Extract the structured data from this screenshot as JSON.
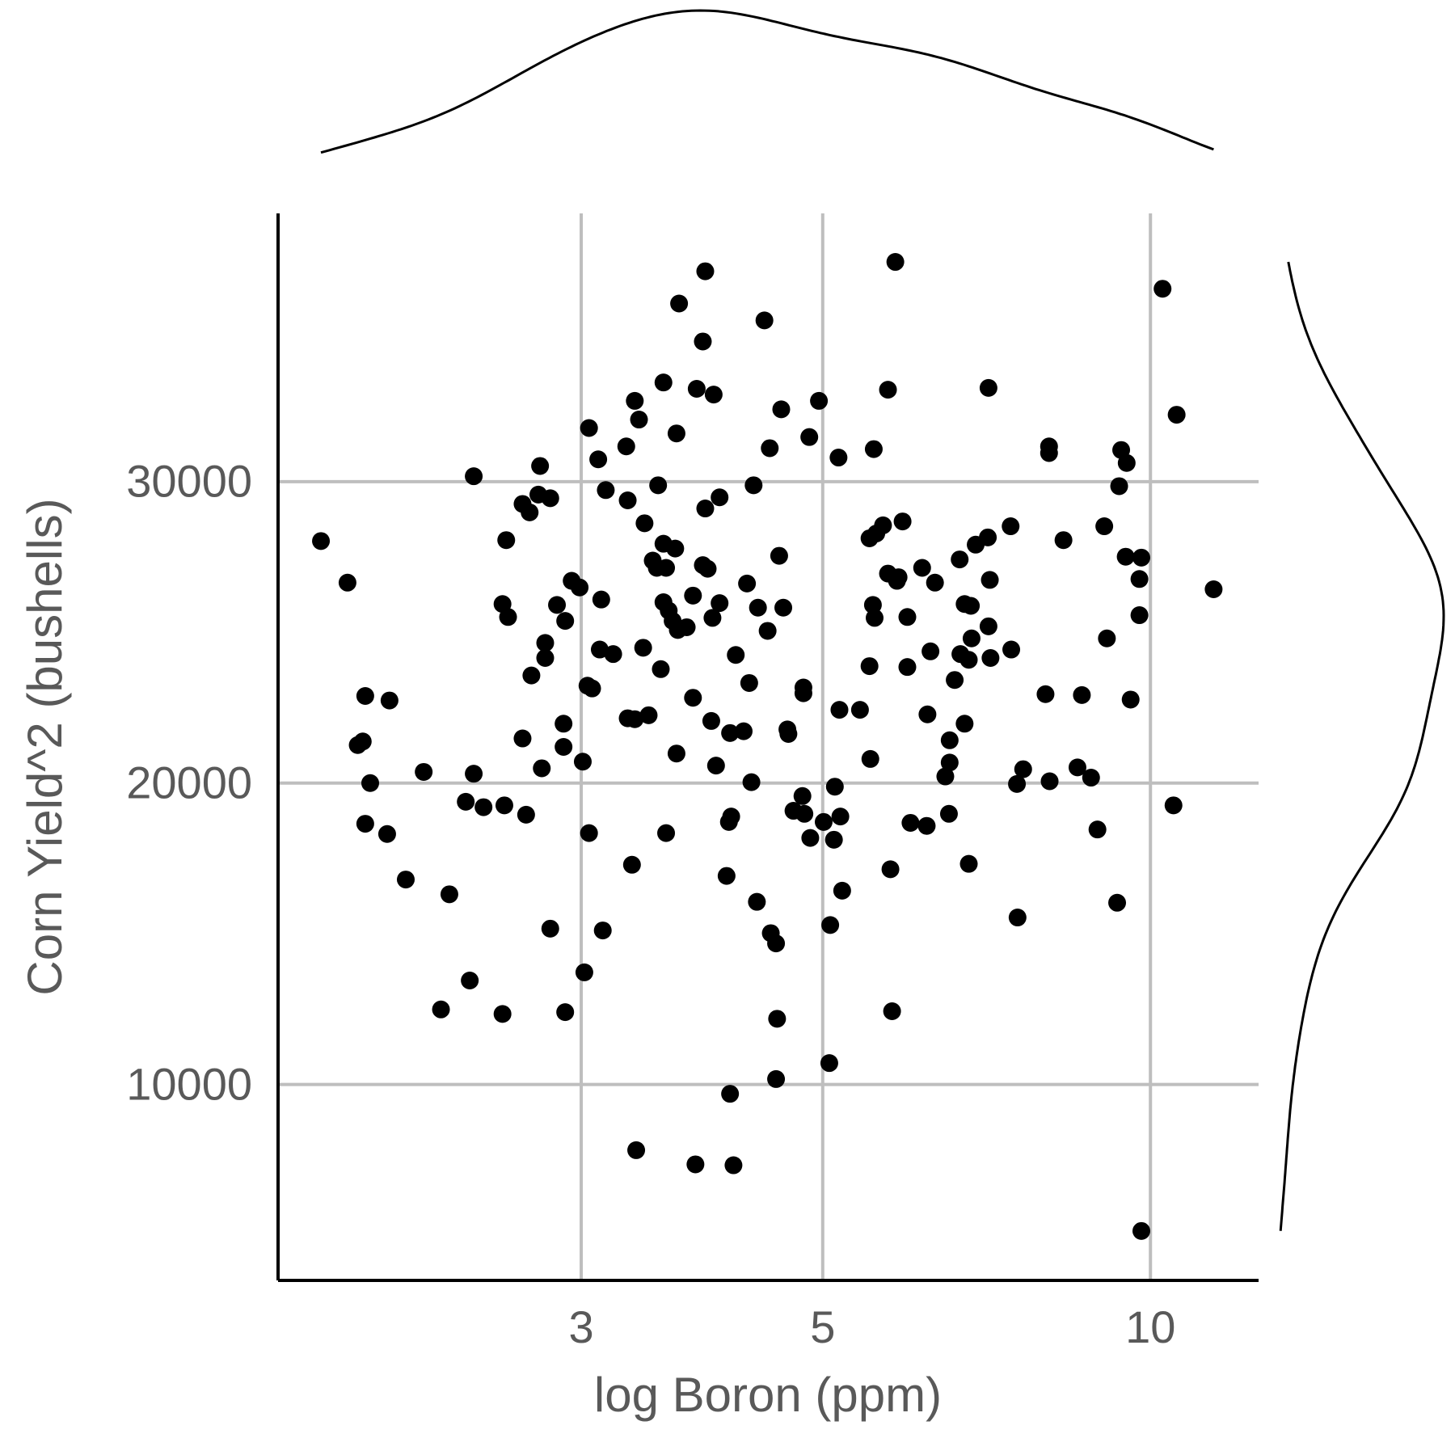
{
  "chart_data": {
    "type": "scatter",
    "x_label": "log Boron (ppm)",
    "y_label": "Corn Yield^2 (bushells)",
    "log_x": true,
    "grid": true,
    "color": "#000000",
    "marginal_density": true,
    "xlim": [
      1.58,
      12.57
    ],
    "ylim": [
      3500,
      38900
    ],
    "xticks": [
      3,
      5,
      10
    ],
    "yticks": [
      10000,
      20000,
      30000
    ],
    "x": [
      1.73,
      1.83,
      1.9,
      2.0,
      1.87,
      1.89,
      1.92,
      1.9,
      1.99,
      2.07,
      2.15,
      2.27,
      2.23,
      2.37,
      2.35,
      2.39,
      2.44,
      2.55,
      2.54,
      2.39,
      2.56,
      2.54,
      2.57,
      2.65,
      2.69,
      2.75,
      2.74,
      2.81,
      2.65,
      2.67,
      2.7,
      2.76,
      2.78,
      2.78,
      2.81,
      2.9,
      2.85,
      2.9,
      2.94,
      2.99,
      2.89,
      2.89,
      3.01,
      3.02,
      3.05,
      3.14,
      3.05,
      3.11,
      3.16,
      3.13,
      3.12,
      3.21,
      3.04,
      3.07,
      3.3,
      3.31,
      3.36,
      3.39,
      3.43,
      3.42,
      3.53,
      3.49,
      3.52,
      3.55,
      3.31,
      3.36,
      3.46,
      3.34,
      3.37,
      3.57,
      3.67,
      3.57,
      3.66,
      3.59,
      3.57,
      3.61,
      3.64,
      3.68,
      3.75,
      3.67,
      3.59,
      3.8,
      3.69,
      3.88,
      3.83,
      3.97,
      3.9,
      3.9,
      4.02,
      3.88,
      3.92,
      3.8,
      4.02,
      3.96,
      3.95,
      3.99,
      4.11,
      4.23,
      4.16,
      4.28,
      4.12,
      4.1,
      4.3,
      4.08,
      4.11,
      3.82,
      4.14,
      4.35,
      4.42,
      4.32,
      4.47,
      4.58,
      4.26,
      4.36,
      4.45,
      4.6,
      4.56,
      4.64,
      4.65,
      4.48,
      4.53,
      4.54,
      4.53,
      4.8,
      4.8,
      4.79,
      4.7,
      4.81,
      4.87,
      5.01,
      4.86,
      4.96,
      5.17,
      5.07,
      5.08,
      5.13,
      5.12,
      5.19,
      5.21,
      5.18,
      5.41,
      5.53,
      5.52,
      5.56,
      5.58,
      5.52,
      5.6,
      5.68,
      5.74,
      5.85,
      5.87,
      5.92,
      5.57,
      5.74,
      5.83,
      5.79,
      5.77,
      5.98,
      5.98,
      6.02,
      6.23,
      6.17,
      6.34,
      6.28,
      6.24,
      6.53,
      6.54,
      6.54,
      6.48,
      6.61,
      6.75,
      6.68,
      6.69,
      6.81,
      6.75,
      6.84,
      6.85,
      6.91,
      7.09,
      7.12,
      7.1,
      7.13,
      6.81,
      7.1,
      7.44,
      7.45,
      7.55,
      7.54,
      7.64,
      8.01,
      8.07,
      8.07,
      8.08,
      8.32,
      8.57,
      8.82,
      8.65,
      8.94,
      9.07,
      9.12,
      9.32,
      9.36,
      9.4,
      9.51,
      9.49,
      9.81,
      9.77,
      9.77,
      9.59,
      9.81,
      10.26,
      10.57,
      10.5,
      11.43
    ],
    "y": [
      28030,
      26650,
      22890,
      22740,
      21260,
      21380,
      20000,
      18650,
      18310,
      16800,
      20370,
      16310,
      12490,
      13450,
      19380,
      20310,
      19200,
      19260,
      12340,
      30180,
      28060,
      25940,
      25510,
      29260,
      28980,
      30520,
      29570,
      29450,
      21480,
      18950,
      23570,
      20490,
      24650,
      24150,
      15170,
      12400,
      25910,
      25380,
      26710,
      26490,
      21970,
      21200,
      20710,
      13720,
      18340,
      15110,
      31780,
      30740,
      29720,
      26090,
      24430,
      24280,
      23230,
      23140,
      31170,
      29380,
      32680,
      32060,
      28620,
      24490,
      29880,
      27380,
      27140,
      23780,
      22150,
      22120,
      22250,
      17290,
      7820,
      33290,
      31600,
      27940,
      27780,
      27140,
      26000,
      25720,
      25380,
      25080,
      25170,
      20980,
      18340,
      22830,
      35910,
      34650,
      33080,
      32890,
      36980,
      29110,
      29480,
      27230,
      27110,
      26220,
      25970,
      25480,
      22060,
      20580,
      21660,
      21720,
      24250,
      23320,
      18890,
      18710,
      20030,
      16920,
      9690,
      7350,
      7320,
      16060,
      35350,
      29880,
      31110,
      32400,
      26620,
      25820,
      25050,
      25820,
      27540,
      21780,
      21630,
      15020,
      14680,
      12180,
      10180,
      23170,
      22980,
      19570,
      19080,
      18980,
      18180,
      18710,
      31480,
      32680,
      30800,
      10710,
      15290,
      19880,
      18120,
      18890,
      16430,
      22430,
      22430,
      20800,
      23880,
      25910,
      25480,
      28120,
      28280,
      28550,
      26950,
      26710,
      26830,
      28680,
      31080,
      33050,
      37290,
      12430,
      17140,
      25510,
      23850,
      18680,
      18580,
      27140,
      26650,
      24370,
      22280,
      18980,
      20680,
      21420,
      20220,
      23420,
      21970,
      27420,
      24280,
      24090,
      25940,
      25880,
      24800,
      27910,
      28150,
      26740,
      25200,
      24150,
      17320,
      33110,
      28520,
      24430,
      15540,
      19970,
      20460,
      22950,
      31170,
      30950,
      20060,
      28060,
      20520,
      20180,
      22920,
      18460,
      28520,
      24800,
      16030,
      29850,
      31050,
      30620,
      27510,
      27480,
      26770,
      25570,
      22770,
      5140,
      36400,
      32220,
      19260,
      26430
    ]
  }
}
